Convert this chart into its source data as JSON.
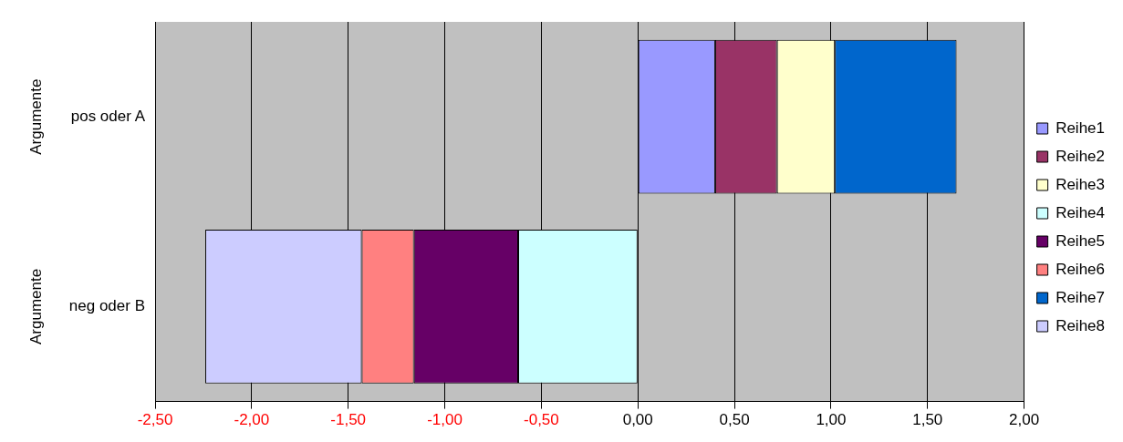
{
  "chart_data": {
    "type": "bar",
    "orientation": "horizontal",
    "stacked": true,
    "categories": [
      "pos oder A",
      "neg oder B"
    ],
    "series": [
      {
        "name": "Reihe1",
        "color": "#9999ff",
        "values": [
          0.4,
          null
        ]
      },
      {
        "name": "Reihe2",
        "color": "#993366",
        "values": [
          0.32,
          null
        ]
      },
      {
        "name": "Reihe3",
        "color": "#ffffcc",
        "values": [
          0.3,
          null
        ]
      },
      {
        "name": "Reihe4",
        "color": "#ccffff",
        "values": [
          null,
          -0.62
        ]
      },
      {
        "name": "Reihe5",
        "color": "#660066",
        "values": [
          null,
          -0.54
        ]
      },
      {
        "name": "Reihe6",
        "color": "#ff8080",
        "values": [
          null,
          -0.27
        ]
      },
      {
        "name": "Reihe7",
        "color": "#0066cc",
        "values": [
          0.63,
          null
        ]
      },
      {
        "name": "Reihe8",
        "color": "#ccccff",
        "values": [
          null,
          -0.81
        ]
      }
    ],
    "xlim": [
      -2.5,
      2.0
    ],
    "xticks": [
      {
        "value": -2.5,
        "label": "-2,50"
      },
      {
        "value": -2.0,
        "label": "-2,00"
      },
      {
        "value": -1.5,
        "label": "-1,50"
      },
      {
        "value": -1.0,
        "label": "-1,00"
      },
      {
        "value": -0.5,
        "label": "-0,50"
      },
      {
        "value": 0,
        "label": "0,00"
      },
      {
        "value": 0.5,
        "label": "0,50"
      },
      {
        "value": 1.0,
        "label": "1,00"
      },
      {
        "value": 1.5,
        "label": "1,50"
      },
      {
        "value": 2.0,
        "label": "2,00"
      }
    ],
    "annotations": [
      "Argumente",
      "Argumente"
    ],
    "grid": "x",
    "legend": "right"
  }
}
